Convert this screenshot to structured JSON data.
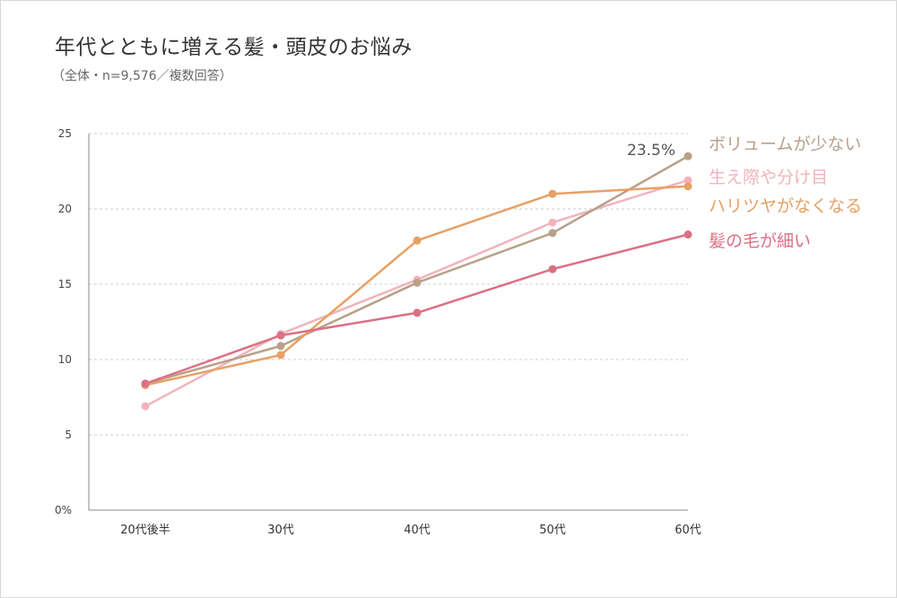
{
  "title": "年代とともに増える髪・頭皮のお悩み",
  "subtitle": "（全体・n=9,576／複数回答）",
  "chart_data": {
    "type": "line",
    "categories": [
      "20代後半",
      "30代",
      "40代",
      "50代",
      "60代"
    ],
    "ylim": [
      0,
      25
    ],
    "yticks": [
      {
        "value": 0,
        "label": "0%"
      },
      {
        "value": 5,
        "label": "5"
      },
      {
        "value": 10,
        "label": "10"
      },
      {
        "value": 15,
        "label": "15"
      },
      {
        "value": 20,
        "label": "20"
      },
      {
        "value": 25,
        "label": "25"
      }
    ],
    "grid": true,
    "legend_placement": "right",
    "series": [
      {
        "name": "生え際や分け目",
        "color": "#f0b4bc",
        "values": [
          6.9,
          11.7,
          15.3,
          19.1,
          21.9
        ]
      },
      {
        "name": "ボリュームが少ない",
        "color": "#b8a088",
        "values": [
          8.4,
          10.9,
          15.1,
          18.4,
          23.5
        ]
      },
      {
        "name": "ハリツヤがなくなる",
        "color": "#e8a064",
        "values": [
          8.3,
          10.3,
          17.9,
          21.0,
          21.5
        ]
      },
      {
        "name": "髪の毛が細い",
        "color": "#dc7084",
        "values": [
          8.4,
          11.6,
          13.1,
          16.0,
          18.3
        ]
      }
    ],
    "legend_order": [
      "ボリュームが少ない",
      "生え際や分け目",
      "ハリツヤがなくなる",
      "髪の毛が細い"
    ],
    "annotations": [
      {
        "text": "23.5%",
        "series": "ボリュームが少ない",
        "category": "60代"
      }
    ]
  }
}
